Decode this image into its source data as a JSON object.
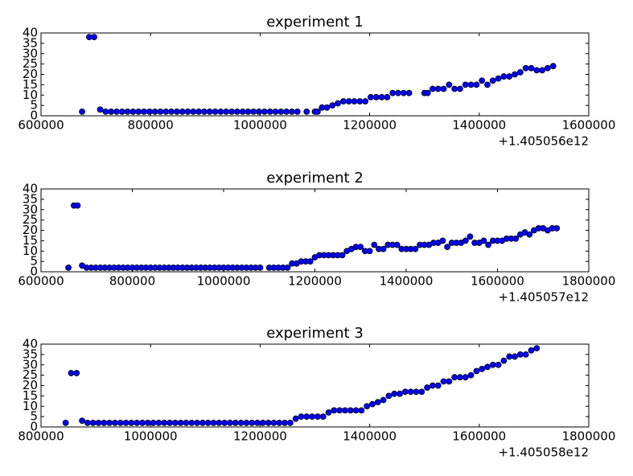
{
  "chart_data": [
    {
      "type": "scatter",
      "title": "experiment 1",
      "x_offset_label": "+1.405056e12",
      "color": "#0000ff",
      "x": [
        675000,
        688000,
        697000,
        708000,
        718000,
        728000,
        738000,
        748000,
        758000,
        768000,
        778000,
        788000,
        798000,
        808000,
        818000,
        828000,
        838000,
        848000,
        858000,
        868000,
        878000,
        888000,
        898000,
        908000,
        918000,
        928000,
        938000,
        948000,
        958000,
        968000,
        978000,
        988000,
        998000,
        1008000,
        1018000,
        1028000,
        1038000,
        1048000,
        1058000,
        1068000,
        1085000,
        1100000,
        1105000,
        1113000,
        1122000,
        1132000,
        1142000,
        1152000,
        1162000,
        1172000,
        1182000,
        1192000,
        1202000,
        1212000,
        1222000,
        1232000,
        1242000,
        1252000,
        1262000,
        1272000,
        1300000,
        1306000,
        1315000,
        1325000,
        1335000,
        1345000,
        1355000,
        1365000,
        1375000,
        1385000,
        1395000,
        1405000,
        1415000,
        1425000,
        1435000,
        1445000,
        1455000,
        1465000,
        1475000,
        1485000,
        1495000,
        1505000,
        1515000,
        1525000,
        1535000
      ],
      "values": [
        2,
        38,
        38,
        3,
        2,
        2,
        2,
        2,
        2,
        2,
        2,
        2,
        2,
        2,
        2,
        2,
        2,
        2,
        2,
        2,
        2,
        2,
        2,
        2,
        2,
        2,
        2,
        2,
        2,
        2,
        2,
        2,
        2,
        2,
        2,
        2,
        2,
        2,
        2,
        2,
        2,
        2,
        2,
        4,
        4,
        5,
        6,
        7,
        7,
        7,
        7,
        7,
        9,
        9,
        9,
        9,
        11,
        11,
        11,
        11,
        11,
        11,
        13,
        13,
        13,
        15,
        13,
        13,
        15,
        15,
        15,
        17,
        15,
        17,
        18,
        19,
        19,
        20,
        21,
        23,
        23,
        22,
        22,
        23,
        24
      ],
      "xlim": [
        600000,
        1600000
      ],
      "ylim": [
        0,
        40
      ],
      "xticks": [
        600000,
        800000,
        1000000,
        1200000,
        1400000,
        1600000
      ],
      "yticks": [
        0,
        5,
        10,
        15,
        20,
        25,
        30,
        35,
        40
      ]
    },
    {
      "type": "scatter",
      "title": "experiment 2",
      "x_offset_label": "+1.405057e12",
      "color": "#0000ff",
      "x": [
        660000,
        672000,
        680000,
        690000,
        700000,
        710000,
        720000,
        730000,
        740000,
        750000,
        760000,
        770000,
        780000,
        790000,
        800000,
        810000,
        820000,
        830000,
        840000,
        850000,
        860000,
        870000,
        880000,
        890000,
        900000,
        910000,
        920000,
        930000,
        940000,
        950000,
        960000,
        970000,
        980000,
        990000,
        1000000,
        1010000,
        1020000,
        1030000,
        1040000,
        1050000,
        1060000,
        1070000,
        1080000,
        1100000,
        1110000,
        1120000,
        1130000,
        1140000,
        1150000,
        1160000,
        1170000,
        1180000,
        1190000,
        1200000,
        1210000,
        1220000,
        1230000,
        1240000,
        1250000,
        1260000,
        1270000,
        1280000,
        1290000,
        1300000,
        1310000,
        1320000,
        1330000,
        1340000,
        1350000,
        1360000,
        1370000,
        1380000,
        1390000,
        1400000,
        1410000,
        1420000,
        1430000,
        1440000,
        1450000,
        1460000,
        1470000,
        1480000,
        1490000,
        1500000,
        1510000,
        1520000,
        1530000,
        1540000,
        1550000,
        1560000,
        1570000,
        1580000,
        1590000,
        1600000,
        1610000,
        1620000,
        1630000,
        1640000,
        1650000,
        1660000,
        1670000,
        1680000,
        1690000,
        1700000,
        1710000,
        1720000,
        1730000
      ],
      "values": [
        2,
        32,
        32,
        3,
        2,
        2,
        2,
        2,
        2,
        2,
        2,
        2,
        2,
        2,
        2,
        2,
        2,
        2,
        2,
        2,
        2,
        2,
        2,
        2,
        2,
        2,
        2,
        2,
        2,
        2,
        2,
        2,
        2,
        2,
        2,
        2,
        2,
        2,
        2,
        2,
        2,
        2,
        2,
        2,
        2,
        2,
        2,
        2,
        4,
        4,
        5,
        5,
        5,
        7,
        8,
        8,
        8,
        8,
        8,
        8,
        10,
        11,
        12,
        12,
        10,
        10,
        13,
        11,
        11,
        13,
        13,
        13,
        11,
        11,
        11,
        11,
        13,
        13,
        13,
        14,
        14,
        15,
        12,
        14,
        14,
        14,
        15,
        17,
        14,
        14,
        15,
        13,
        15,
        15,
        15,
        16,
        16,
        16,
        18,
        19,
        18,
        20,
        21,
        21,
        20,
        21,
        21
      ],
      "xlim": [
        600000,
        1800000
      ],
      "ylim": [
        0,
        40
      ],
      "xticks": [
        600000,
        800000,
        1000000,
        1200000,
        1400000,
        1600000,
        1800000
      ],
      "yticks": [
        0,
        5,
        10,
        15,
        20,
        25,
        30,
        35,
        40
      ]
    },
    {
      "type": "scatter",
      "title": "experiment 3",
      "x_offset_label": "+1.405058e12",
      "color": "#0000ff",
      "x": [
        845000,
        855000,
        865000,
        875000,
        885000,
        895000,
        905000,
        915000,
        925000,
        935000,
        945000,
        955000,
        965000,
        975000,
        985000,
        995000,
        1005000,
        1015000,
        1025000,
        1035000,
        1045000,
        1055000,
        1065000,
        1075000,
        1085000,
        1095000,
        1105000,
        1115000,
        1125000,
        1135000,
        1145000,
        1155000,
        1165000,
        1175000,
        1185000,
        1195000,
        1205000,
        1215000,
        1225000,
        1235000,
        1245000,
        1255000,
        1265000,
        1275000,
        1285000,
        1295000,
        1305000,
        1315000,
        1325000,
        1335000,
        1345000,
        1355000,
        1365000,
        1375000,
        1385000,
        1395000,
        1405000,
        1415000,
        1425000,
        1435000,
        1445000,
        1455000,
        1465000,
        1475000,
        1485000,
        1495000,
        1505000,
        1515000,
        1525000,
        1535000,
        1545000,
        1555000,
        1565000,
        1575000,
        1585000,
        1595000,
        1605000,
        1615000,
        1625000,
        1635000,
        1645000,
        1655000,
        1665000,
        1675000,
        1685000,
        1695000,
        1705000
      ],
      "values": [
        2,
        26,
        26,
        3,
        2,
        2,
        2,
        2,
        2,
        2,
        2,
        2,
        2,
        2,
        2,
        2,
        2,
        2,
        2,
        2,
        2,
        2,
        2,
        2,
        2,
        2,
        2,
        2,
        2,
        2,
        2,
        2,
        2,
        2,
        2,
        2,
        2,
        2,
        2,
        2,
        2,
        2,
        4,
        5,
        5,
        5,
        5,
        5,
        7,
        8,
        8,
        8,
        8,
        8,
        8,
        10,
        11,
        12,
        13,
        15,
        16,
        16,
        17,
        17,
        17,
        17,
        19,
        20,
        20,
        22,
        22,
        24,
        24,
        24,
        25,
        27,
        28,
        29,
        30,
        30,
        32,
        34,
        34,
        35,
        35,
        37,
        38
      ],
      "xlim": [
        800000,
        1800000
      ],
      "ylim": [
        0,
        40
      ],
      "xticks": [
        800000,
        1000000,
        1200000,
        1400000,
        1600000,
        1800000
      ],
      "yticks": [
        0,
        5,
        10,
        15,
        20,
        25,
        30,
        35,
        40
      ]
    }
  ]
}
